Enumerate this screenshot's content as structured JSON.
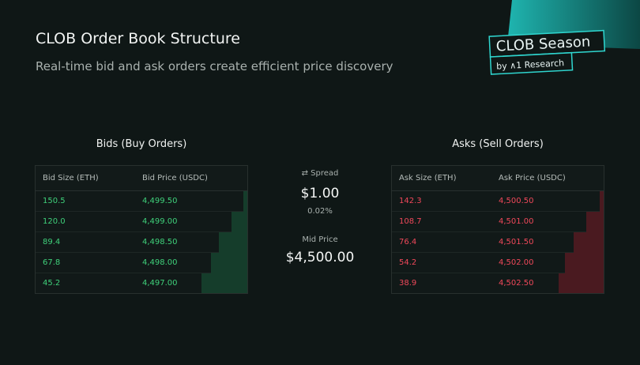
{
  "header": {
    "title": "CLOB Order Book Structure",
    "subtitle": "Real-time bid and ask orders create efficient price discovery"
  },
  "badge": {
    "title": "CLOB Season",
    "byline": "by ∧1 Research"
  },
  "bids": {
    "heading": "Bids (Buy Orders)",
    "columns": [
      "Bid Size (ETH)",
      "Bid Price (USDC)"
    ],
    "rows": [
      [
        "150.5",
        "4,499.50"
      ],
      [
        "120.0",
        "4,499.00"
      ],
      [
        "89.4",
        "4,498.50"
      ],
      [
        "67.8",
        "4,498.00"
      ],
      [
        "45.2",
        "4,497.00"
      ]
    ]
  },
  "asks": {
    "heading": "Asks (Sell Orders)",
    "columns": [
      "Ask Size (ETH)",
      "Ask Price (USDC)"
    ],
    "rows": [
      [
        "142.3",
        "4,500.50"
      ],
      [
        "108.7",
        "4,501.00"
      ],
      [
        "76.4",
        "4,501.50"
      ],
      [
        "54.2",
        "4,502.00"
      ],
      [
        "38.9",
        "4,502.50"
      ]
    ]
  },
  "spread": {
    "label": "Spread",
    "value": "$1.00",
    "percent": "0.02%"
  },
  "mid": {
    "label": "Mid Price",
    "value": "$4,500.00"
  }
}
